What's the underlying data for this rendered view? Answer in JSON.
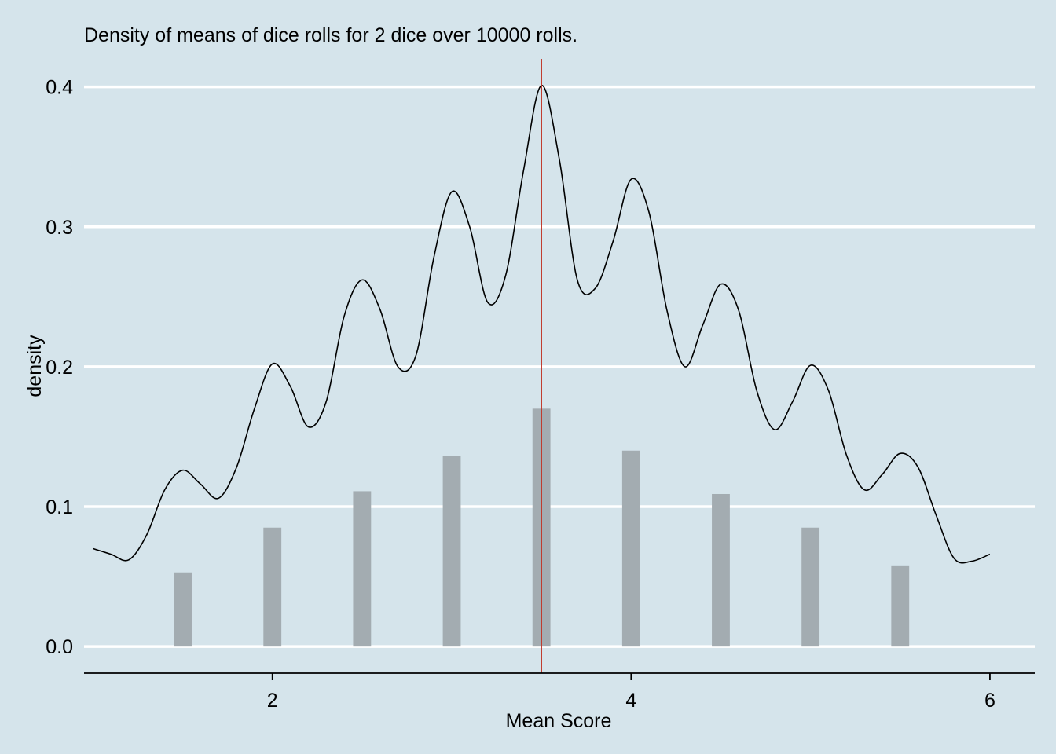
{
  "chart_data": {
    "type": "bar",
    "title": "Density of means of dice rolls for 2 dice over 10000 rolls.",
    "xlabel": "Mean Score",
    "ylabel": "density",
    "xlim": [
      0.95,
      6.25
    ],
    "ylim": [
      -0.019,
      0.42
    ],
    "x_ticks": [
      2,
      4,
      6
    ],
    "y_ticks": [
      0.0,
      0.1,
      0.2,
      0.3,
      0.4
    ],
    "y_tick_labels": [
      "0.0",
      "0.1",
      "0.2",
      "0.3",
      "0.4"
    ],
    "bar_width": 0.1,
    "bars": {
      "x": [
        1.5,
        2.0,
        2.5,
        3.0,
        3.5,
        4.0,
        4.5,
        5.0,
        5.5
      ],
      "values": [
        0.053,
        0.085,
        0.111,
        0.136,
        0.17,
        0.14,
        0.109,
        0.085,
        0.058
      ]
    },
    "density_curve": {
      "x": [
        1.0,
        1.1,
        1.2,
        1.3,
        1.4,
        1.5,
        1.6,
        1.7,
        1.8,
        1.9,
        2.0,
        2.1,
        2.2,
        2.3,
        2.4,
        2.5,
        2.6,
        2.7,
        2.8,
        2.9,
        3.0,
        3.1,
        3.2,
        3.3,
        3.4,
        3.5,
        3.6,
        3.7,
        3.8,
        3.9,
        4.0,
        4.1,
        4.2,
        4.3,
        4.4,
        4.5,
        4.6,
        4.7,
        4.8,
        4.9,
        5.0,
        5.1,
        5.2,
        5.3,
        5.4,
        5.5,
        5.6,
        5.7,
        5.8,
        5.9,
        6.0
      ],
      "y": [
        0.07,
        0.066,
        0.062,
        0.08,
        0.112,
        0.126,
        0.116,
        0.106,
        0.128,
        0.17,
        0.202,
        0.186,
        0.157,
        0.175,
        0.236,
        0.262,
        0.241,
        0.2,
        0.208,
        0.278,
        0.325,
        0.3,
        0.246,
        0.265,
        0.34,
        0.401,
        0.348,
        0.262,
        0.256,
        0.29,
        0.334,
        0.31,
        0.24,
        0.2,
        0.23,
        0.259,
        0.24,
        0.183,
        0.155,
        0.175,
        0.201,
        0.183,
        0.137,
        0.112,
        0.123,
        0.138,
        0.128,
        0.094,
        0.063,
        0.061,
        0.066
      ]
    },
    "mean_line": {
      "x": 3.5,
      "color": "#c0392b"
    },
    "colors": {
      "background": "#d5e4eb",
      "bars": "#a3acb1",
      "gridlines": "#ffffff",
      "density": "#000000"
    },
    "grid": "horizontal"
  }
}
